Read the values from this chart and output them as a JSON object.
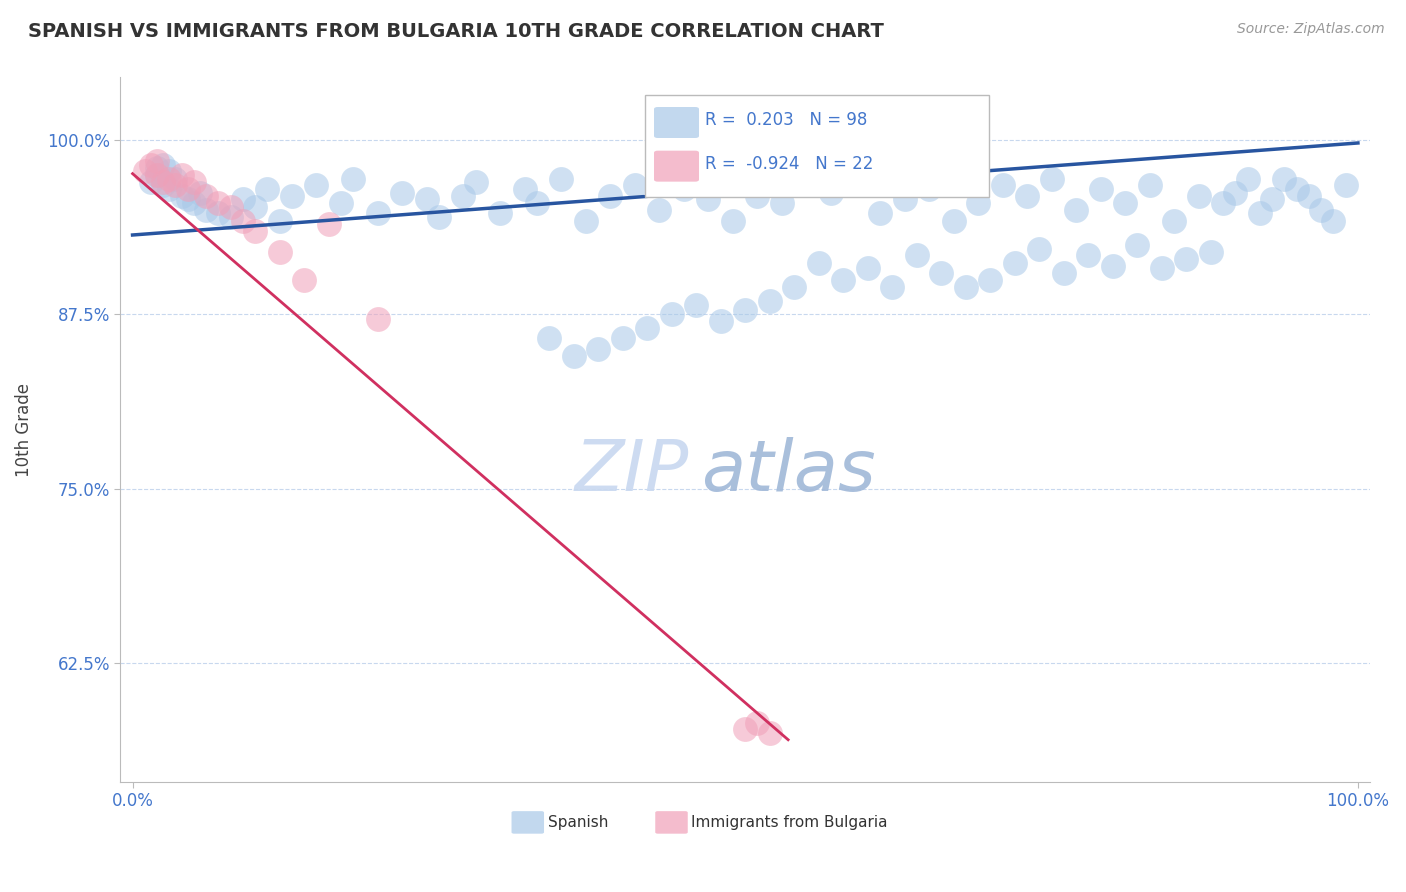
{
  "title": "SPANISH VS IMMIGRANTS FROM BULGARIA 10TH GRADE CORRELATION CHART",
  "source_text": "Source: ZipAtlas.com",
  "ylabel": "10th Grade",
  "r_blue": "0.203",
  "n_blue": "98",
  "r_pink": "-0.924",
  "n_pink": "22",
  "blue_color": "#A8C8E8",
  "pink_color": "#F0A0B8",
  "blue_line_color": "#2855A0",
  "pink_line_color": "#D03060",
  "title_color": "#333333",
  "axis_label_color": "#444444",
  "tick_color": "#4477CC",
  "grid_color": "#C8D8EE",
  "watermark_zip_color": "#C8D8F0",
  "watermark_atlas_color": "#A0B8D8",
  "background_color": "#FFFFFF",
  "y_min": 0.54,
  "y_max": 1.045,
  "x_min": -0.01,
  "x_max": 1.01,
  "blue_line_x": [
    0.0,
    1.0
  ],
  "blue_line_y": [
    0.932,
    0.998
  ],
  "pink_line_x": [
    0.0,
    0.535
  ],
  "pink_line_y": [
    0.976,
    0.57
  ],
  "blue_scatter_x": [
    0.015,
    0.02,
    0.025,
    0.03,
    0.035,
    0.04,
    0.045,
    0.02,
    0.03,
    0.025,
    0.05,
    0.06,
    0.055,
    0.07,
    0.08,
    0.09,
    0.1,
    0.11,
    0.12,
    0.13,
    0.15,
    0.17,
    0.18,
    0.2,
    0.22,
    0.24,
    0.25,
    0.27,
    0.28,
    0.3,
    0.32,
    0.33,
    0.35,
    0.37,
    0.39,
    0.41,
    0.43,
    0.45,
    0.47,
    0.49,
    0.51,
    0.53,
    0.55,
    0.57,
    0.59,
    0.61,
    0.63,
    0.65,
    0.67,
    0.69,
    0.71,
    0.73,
    0.75,
    0.77,
    0.79,
    0.81,
    0.83,
    0.85,
    0.87,
    0.89,
    0.91,
    0.93,
    0.95,
    0.97,
    0.99,
    0.98,
    0.96,
    0.94,
    0.92,
    0.9,
    0.88,
    0.86,
    0.84,
    0.82,
    0.8,
    0.78,
    0.76,
    0.74,
    0.72,
    0.7,
    0.68,
    0.66,
    0.64,
    0.62,
    0.6,
    0.58,
    0.56,
    0.54,
    0.52,
    0.5,
    0.48,
    0.46,
    0.44,
    0.42,
    0.4,
    0.38,
    0.36,
    0.34
  ],
  "blue_scatter_y": [
    0.97,
    0.975,
    0.968,
    0.965,
    0.972,
    0.96,
    0.958,
    0.98,
    0.978,
    0.982,
    0.955,
    0.95,
    0.962,
    0.948,
    0.945,
    0.958,
    0.952,
    0.965,
    0.942,
    0.96,
    0.968,
    0.955,
    0.972,
    0.948,
    0.962,
    0.958,
    0.945,
    0.96,
    0.97,
    0.948,
    0.965,
    0.955,
    0.972,
    0.942,
    0.96,
    0.968,
    0.95,
    0.965,
    0.958,
    0.942,
    0.96,
    0.955,
    0.968,
    0.962,
    0.97,
    0.948,
    0.958,
    0.965,
    0.942,
    0.955,
    0.968,
    0.96,
    0.972,
    0.95,
    0.965,
    0.955,
    0.968,
    0.942,
    0.96,
    0.955,
    0.972,
    0.958,
    0.965,
    0.95,
    0.968,
    0.942,
    0.96,
    0.972,
    0.948,
    0.962,
    0.92,
    0.915,
    0.908,
    0.925,
    0.91,
    0.918,
    0.905,
    0.922,
    0.912,
    0.9,
    0.895,
    0.905,
    0.918,
    0.895,
    0.908,
    0.9,
    0.912,
    0.895,
    0.885,
    0.878,
    0.87,
    0.882,
    0.875,
    0.865,
    0.858,
    0.85,
    0.845,
    0.858
  ],
  "pink_scatter_x": [
    0.01,
    0.015,
    0.02,
    0.025,
    0.02,
    0.03,
    0.035,
    0.04,
    0.045,
    0.05,
    0.06,
    0.07,
    0.08,
    0.09,
    0.1,
    0.12,
    0.2,
    0.14,
    0.16,
    0.5,
    0.51,
    0.52
  ],
  "pink_scatter_y": [
    0.978,
    0.982,
    0.975,
    0.97,
    0.985,
    0.972,
    0.968,
    0.975,
    0.965,
    0.97,
    0.96,
    0.955,
    0.952,
    0.942,
    0.935,
    0.92,
    0.872,
    0.9,
    0.94,
    0.578,
    0.582,
    0.575
  ]
}
